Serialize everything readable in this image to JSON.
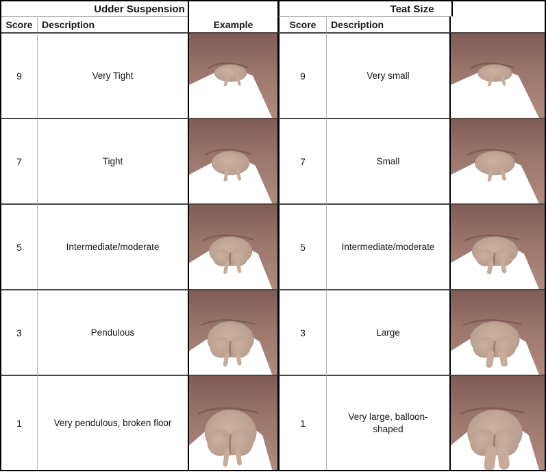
{
  "table": {
    "sections": [
      {
        "title": "Udder Suspension",
        "columns": {
          "score": "Score",
          "description": "Description",
          "example": "Example"
        },
        "rows": [
          {
            "score": "9",
            "description": "Very Tight",
            "image": "udder-suspension-photo-score-9"
          },
          {
            "score": "7",
            "description": "Tight",
            "image": "udder-suspension-photo-score-7"
          },
          {
            "score": "5",
            "description": "Intermediate/moderate",
            "image": "udder-suspension-photo-score-5"
          },
          {
            "score": "3",
            "description": "Pendulous",
            "image": "udder-suspension-photo-score-3"
          },
          {
            "score": "1",
            "description": "Very pendulous, broken floor",
            "image": "udder-suspension-photo-score-1"
          }
        ]
      },
      {
        "title": "Teat Size",
        "columns": {
          "score": "Score",
          "description": "Description",
          "example": ""
        },
        "rows": [
          {
            "score": "9",
            "description": "Very small",
            "image": "teat-size-photo-score-9"
          },
          {
            "score": "7",
            "description": "Small",
            "image": "teat-size-photo-score-7"
          },
          {
            "score": "5",
            "description": "Intermediate/moderate",
            "image": "teat-size-photo-score-5"
          },
          {
            "score": "3",
            "description": "Large",
            "image": "teat-size-photo-score-3"
          },
          {
            "score": "1",
            "description": "Very large, balloon-shaped",
            "image": "teat-size-photo-score-1"
          }
        ]
      }
    ]
  },
  "colors": {
    "body_brown_dark": "#7f5c56",
    "body_brown": "#9b766c",
    "body_brown_light": "#b28a7c",
    "udder_tan": "#cbb09e",
    "udder_tan_edge": "#b3988a",
    "teat": "#c9ab99",
    "crease": "#6b4c47",
    "cleft": "#8d7164",
    "grid_line_dark": "#474747",
    "grid_line_light": "#b5b5b5",
    "border_black": "#000000",
    "background": "#ffffff"
  }
}
